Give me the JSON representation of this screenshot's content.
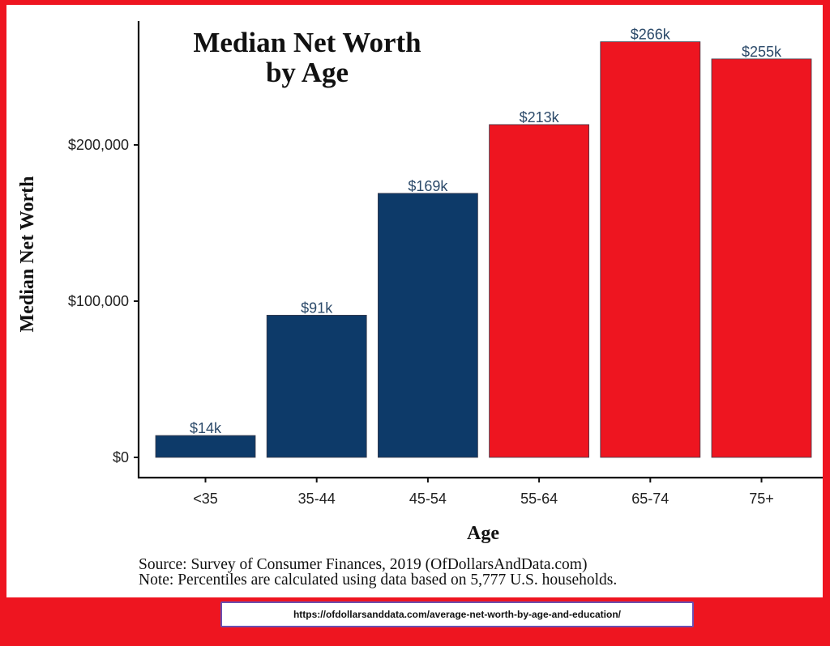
{
  "chart_data": {
    "type": "bar",
    "title_lines": [
      "Median Net Worth",
      "by Age"
    ],
    "xlabel": "Age",
    "ylabel": "Median Net Worth",
    "categories": [
      "<35",
      "35-44",
      "45-54",
      "55-64",
      "65-74",
      "75+"
    ],
    "values": [
      14000,
      91000,
      169000,
      213000,
      266000,
      255000
    ],
    "data_labels": [
      "$14k",
      "$91k",
      "$169k",
      "$213k",
      "$266k",
      "$255k"
    ],
    "bar_colors": [
      "#0d3a69",
      "#0d3a69",
      "#0d3a69",
      "#ee1520",
      "#ee1520",
      "#ee1520"
    ],
    "yticks": [
      0,
      100000,
      200000
    ],
    "ytick_labels": [
      "$0",
      "$100,000",
      "$200,000"
    ],
    "ylim": [
      0,
      280000
    ],
    "grid": false,
    "legend": "none"
  },
  "captions": {
    "source": "Source:  Survey of Consumer Finances, 2019 (OfDollarsAndData.com)",
    "note": "Note: Percentiles are calculated using data based on 5,777 U.S. households."
  },
  "footer": {
    "url": "https://ofdollarsanddata.com/average-net-worth-by-age-and-education/"
  },
  "colors": {
    "background": "#ee1520",
    "navy": "#0d3a69",
    "red": "#ee1520",
    "data_label": "#2c4a6a"
  }
}
